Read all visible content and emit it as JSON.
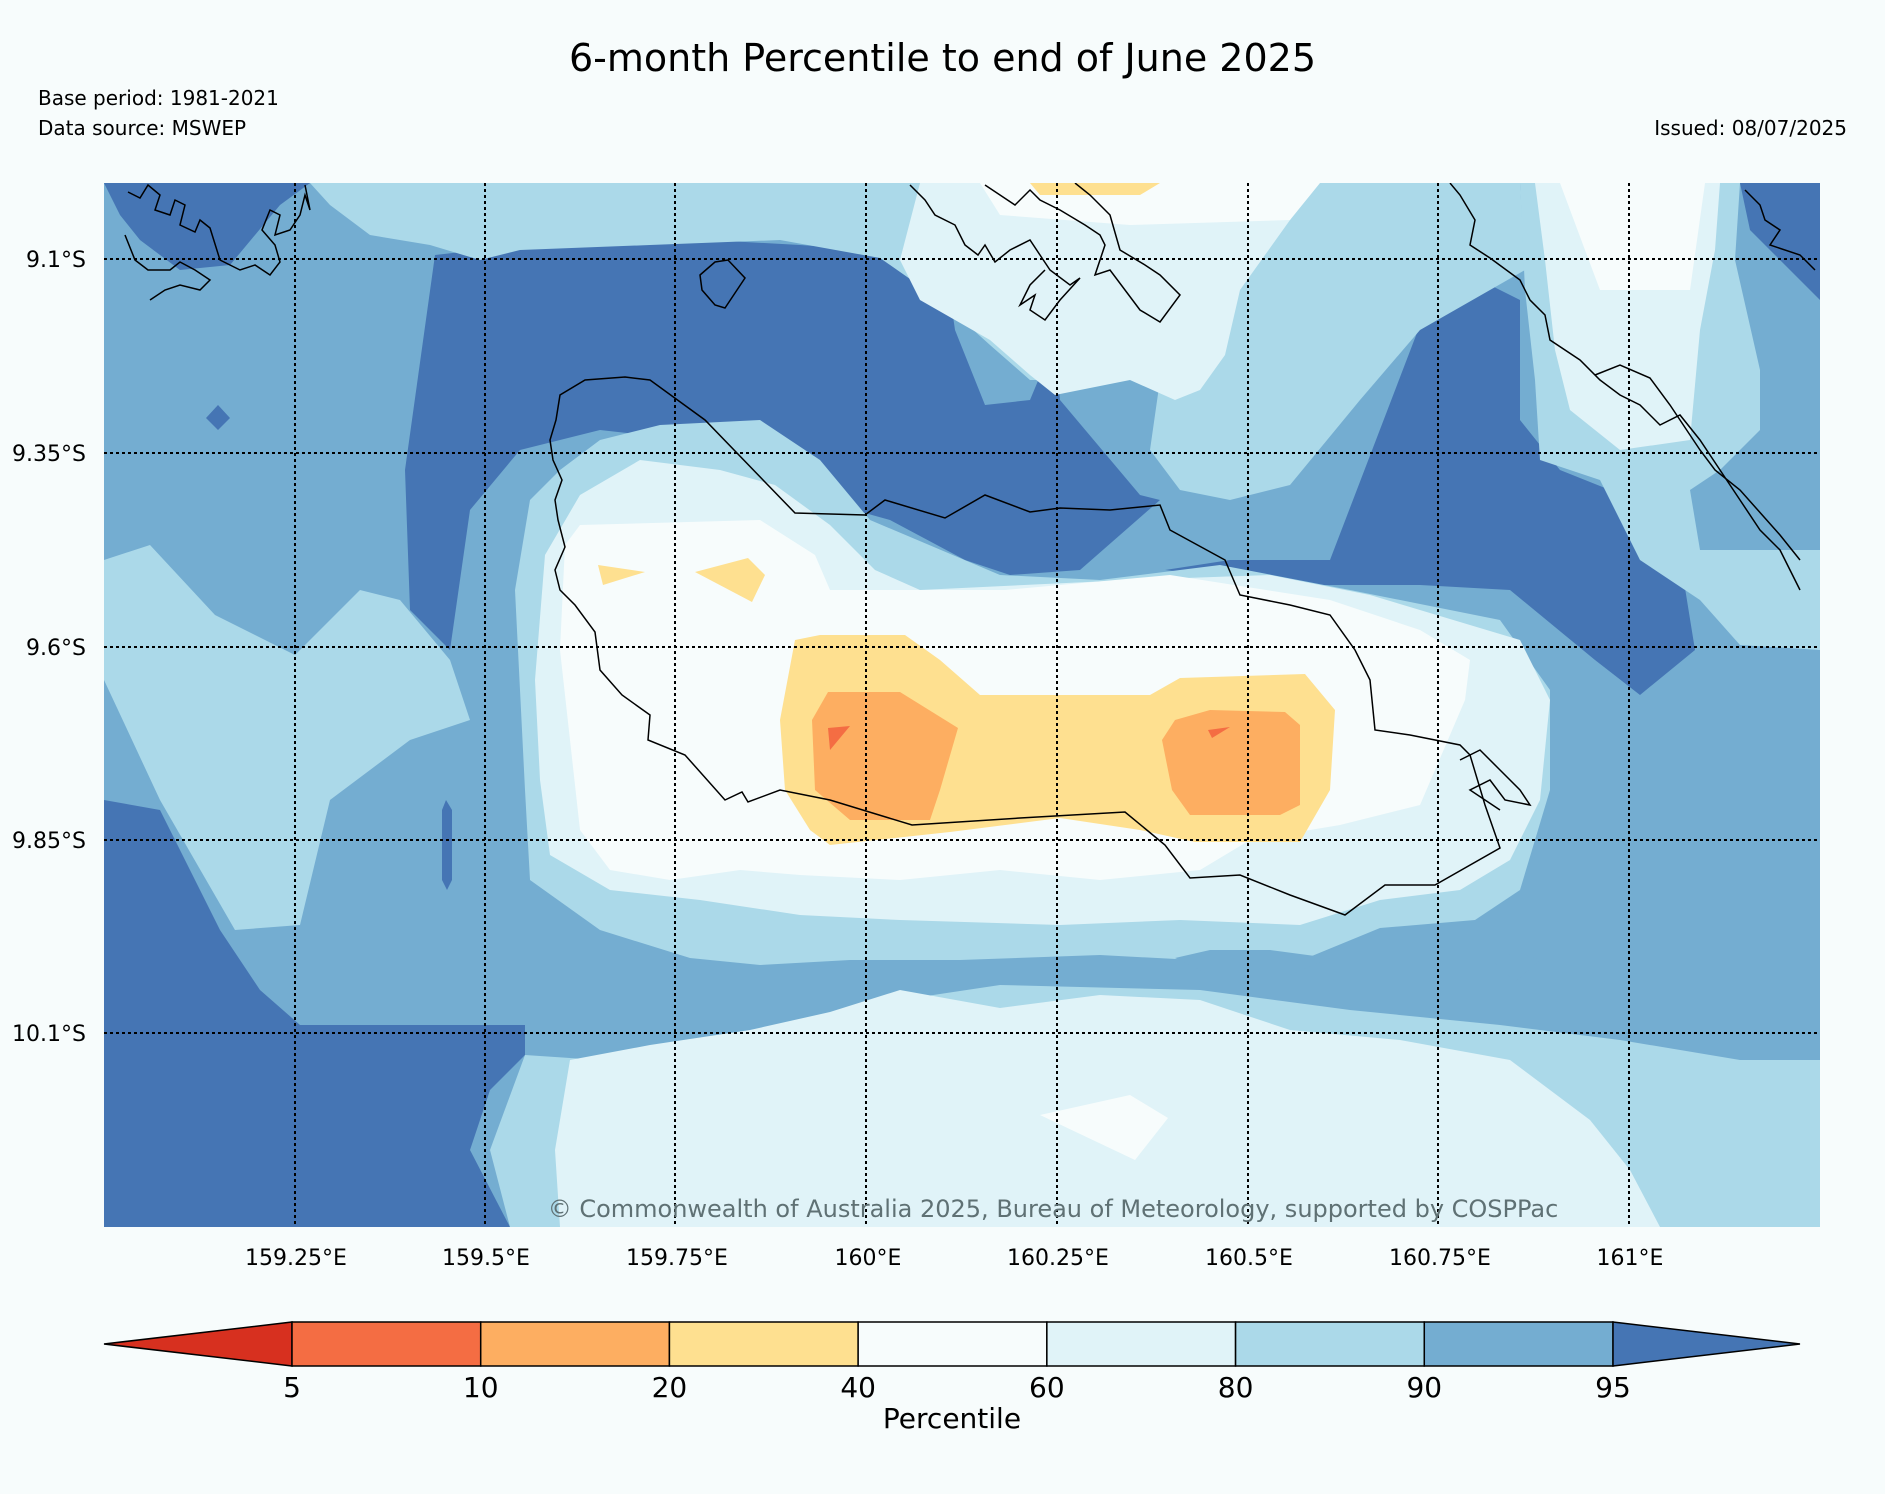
{
  "title": "6-month Percentile to end of June 2025",
  "base_period": "Base period: 1981-2021",
  "data_source": "Data source: MSWEP",
  "issued": "Issued: 08/07/2025",
  "copyright": "© Commonwealth of Australia 2025, Bureau of Meteorology, supported by COSPPac",
  "lat_labels": [
    "9.1°S",
    "9.35°S",
    "9.6°S",
    "9.85°S",
    "10.1°S"
  ],
  "lon_labels": [
    "159.25°E",
    "159.5°E",
    "159.75°E",
    "160°E",
    "160.25°E",
    "160.5°E",
    "160.75°E",
    "161°E"
  ],
  "colorbar": {
    "label": "Percentile",
    "ticks": [
      "5",
      "10",
      "20",
      "40",
      "60",
      "80",
      "90",
      "95"
    ],
    "colors": [
      "#d7301f",
      "#f46d43",
      "#fdae61",
      "#fee090",
      "#f7fcfc",
      "#e0f3f8",
      "#abd9e9",
      "#74add1",
      "#4575b4"
    ]
  }
}
